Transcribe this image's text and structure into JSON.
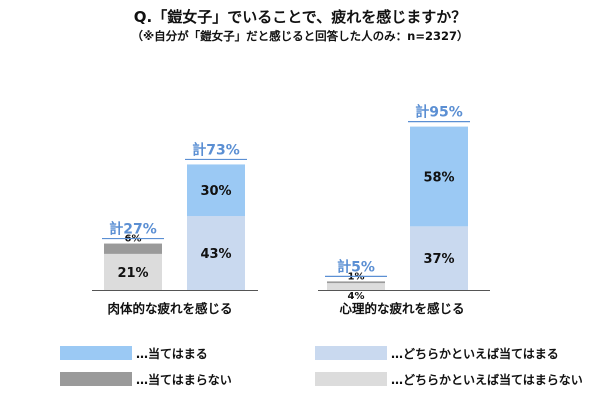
{
  "header": {
    "title": "Q.「鎧女子」でいることで、疲れを感じますか？",
    "subtitle": "（※自分が「鎧女子」だと感じると回答した人のみ：n=2327）"
  },
  "chart_data": {
    "type": "bar",
    "stacked": true,
    "unit": "%",
    "groups": [
      {
        "category": "肉体的な疲れを感じる",
        "bars": [
          {
            "total_label": "計27%",
            "segments": [
              {
                "series": "…どちらかといえば当てはまらない",
                "value": 21,
                "label": "21%"
              },
              {
                "series": "…当てはまらない",
                "value": 6,
                "label": "6%"
              }
            ]
          },
          {
            "total_label": "計73%",
            "segments": [
              {
                "series": "…どちらかといえば当てはまる",
                "value": 43,
                "label": "43%"
              },
              {
                "series": "…当てはまる",
                "value": 30,
                "label": "30%"
              }
            ]
          }
        ]
      },
      {
        "category": "心理的な疲れを感じる",
        "bars": [
          {
            "total_label": "計5%",
            "segments": [
              {
                "series": "…どちらかといえば当てはまらない",
                "value": 4,
                "label": "4%"
              },
              {
                "series": "…当てはまらない",
                "value": 1,
                "label": "1%"
              }
            ]
          },
          {
            "total_label": "計95%",
            "segments": [
              {
                "series": "…どちらかといえば当てはまる",
                "value": 37,
                "label": "37%"
              },
              {
                "series": "…当てはまる",
                "value": 58,
                "label": "58%"
              }
            ]
          }
        ]
      }
    ],
    "legend": [
      {
        "name": "…当てはまる",
        "color": "#9bc9f4"
      },
      {
        "name": "…どちらかといえば当てはまる",
        "color": "#c9d9ef"
      },
      {
        "name": "…当てはまらない",
        "color": "#9a9a9a"
      },
      {
        "name": "…どちらかといえば当てはまらない",
        "color": "#dcdcdc"
      }
    ],
    "legend_placement": "bottom",
    "grid": false
  }
}
